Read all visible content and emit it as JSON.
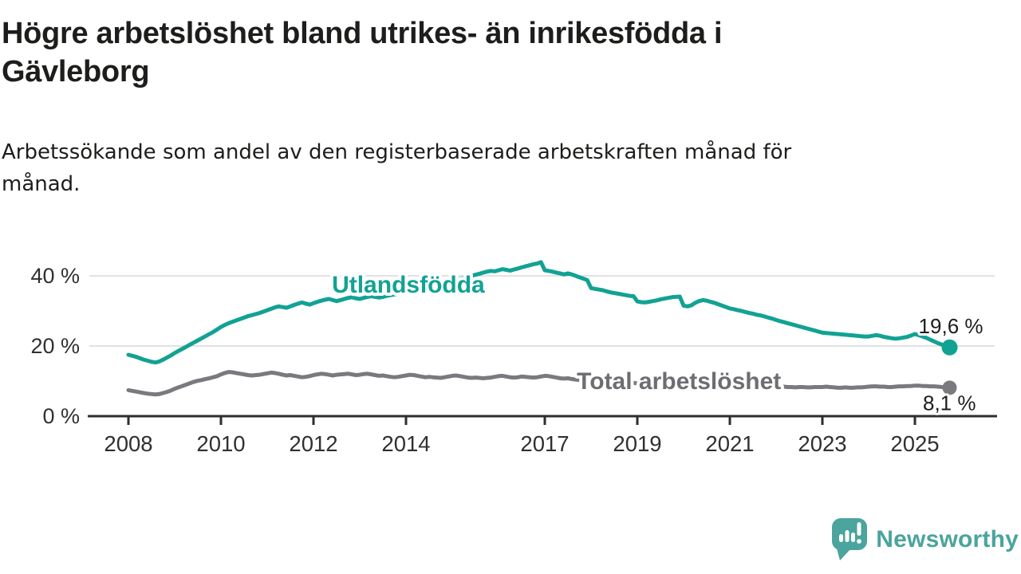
{
  "branding": {
    "logo_text": "Newsworthy",
    "brand_color": "#4ba49d"
  },
  "chart_data": {
    "type": "line",
    "title_lines": [
      "Högre arbetslöshet bland utrikes- än inrikesfödda i",
      "Gävleborg"
    ],
    "subtitle_lines": [
      "Arbetssökande som andel av den registerbaserade arbetskraften månad för",
      "månad."
    ],
    "x": {
      "start": "2008-01",
      "end": "2025-10",
      "interval": "month",
      "tick_years": [
        2008,
        2010,
        2012,
        2014,
        2017,
        2019,
        2021,
        2023,
        2025
      ]
    },
    "y": {
      "ticks": [
        {
          "value": 0,
          "label": "0 %"
        },
        {
          "value": 20,
          "label": "20 %"
        },
        {
          "value": 40,
          "label": "40 %"
        }
      ],
      "ylim": [
        0,
        46
      ]
    },
    "grid": "horizontal",
    "colors": {
      "gridline": "#d9d9d9",
      "axis": "#2e2e2e",
      "tick_text": "#303030",
      "value_text": "#1d1d1b"
    },
    "series": [
      {
        "name": "Utlandsfödda",
        "color": "#12a294",
        "label_anchor": {
          "year": 2014.05,
          "value": 37.5
        },
        "end_value_label": "19,6 %",
        "end_label_offset": {
          "dx": 42,
          "dy": -18
        },
        "values": [
          17.5,
          17.2,
          16.9,
          16.5,
          16.1,
          15.8,
          15.5,
          15.3,
          15.6,
          16.1,
          16.7,
          17.3,
          18.0,
          18.6,
          19.2,
          19.8,
          20.4,
          21.0,
          21.6,
          22.2,
          22.8,
          23.4,
          24.0,
          24.7,
          25.4,
          26.0,
          26.5,
          26.9,
          27.3,
          27.7,
          28.1,
          28.5,
          28.8,
          29.1,
          29.4,
          29.8,
          30.2,
          30.6,
          31.0,
          31.3,
          31.1,
          30.9,
          31.3,
          31.7,
          32.1,
          32.4,
          32.1,
          31.8,
          32.2,
          32.6,
          32.9,
          33.2,
          33.4,
          33.1,
          32.8,
          33.1,
          33.4,
          33.7,
          33.9,
          33.6,
          33.4,
          33.7,
          34.0,
          34.2,
          34.0,
          33.8,
          34.0,
          34.3,
          34.5,
          34.7,
          34.9,
          35.1,
          35.4,
          35.7,
          35.9,
          36.1,
          36.3,
          36.5,
          36.8,
          37.0,
          37.3,
          37.6,
          37.9,
          38.2,
          38.5,
          38.8,
          39.1,
          39.4,
          39.7,
          40.0,
          40.3,
          40.6,
          40.9,
          41.2,
          41.4,
          41.3,
          41.6,
          41.9,
          41.7,
          41.5,
          41.8,
          42.1,
          42.4,
          42.7,
          43.0,
          43.3,
          43.5,
          43.9,
          41.6,
          41.4,
          41.2,
          40.9,
          40.7,
          40.4,
          40.7,
          40.4,
          40.0,
          39.6,
          39.2,
          38.8,
          36.5,
          36.3,
          36.1,
          35.9,
          35.6,
          35.3,
          35.1,
          34.9,
          34.7,
          34.5,
          34.3,
          34.2,
          32.7,
          32.5,
          32.4,
          32.6,
          32.8,
          33.0,
          33.3,
          33.5,
          33.7,
          33.9,
          34.0,
          34.1,
          31.5,
          31.3,
          31.6,
          32.3,
          32.8,
          33.1,
          32.9,
          32.6,
          32.3,
          31.9,
          31.5,
          31.1,
          30.7,
          30.5,
          30.2,
          30.0,
          29.7,
          29.4,
          29.2,
          28.9,
          28.7,
          28.4,
          28.1,
          27.8,
          27.4,
          27.1,
          26.8,
          26.5,
          26.2,
          25.9,
          25.6,
          25.3,
          25.0,
          24.7,
          24.4,
          24.1,
          23.8,
          23.7,
          23.6,
          23.5,
          23.4,
          23.3,
          23.2,
          23.1,
          23.0,
          22.9,
          22.8,
          22.7,
          22.7,
          22.9,
          23.1,
          22.9,
          22.6,
          22.4,
          22.2,
          22.1,
          22.2,
          22.4,
          22.6,
          23.0,
          23.4,
          23.1,
          22.7,
          22.3,
          21.8,
          21.3,
          20.8,
          20.4,
          20.0,
          19.6
        ]
      },
      {
        "name": "Total arbetslöshet",
        "color": "#7a797e",
        "label_color": "#6e6d72",
        "label_anchor": {
          "year": 2019.9,
          "value": 10.0
        },
        "end_value_label": "8,1 %",
        "end_label_offset": {
          "dx": 33,
          "dy": 28
        },
        "values": [
          7.4,
          7.2,
          7.0,
          6.8,
          6.6,
          6.4,
          6.3,
          6.2,
          6.3,
          6.6,
          6.9,
          7.3,
          7.8,
          8.2,
          8.6,
          9.0,
          9.4,
          9.8,
          10.1,
          10.3,
          10.6,
          10.8,
          11.1,
          11.4,
          11.9,
          12.3,
          12.6,
          12.5,
          12.3,
          12.1,
          11.9,
          11.7,
          11.6,
          11.7,
          11.8,
          12.0,
          12.2,
          12.4,
          12.3,
          12.1,
          11.8,
          11.6,
          11.7,
          11.5,
          11.3,
          11.1,
          11.2,
          11.4,
          11.7,
          11.9,
          12.1,
          12.0,
          11.8,
          11.6,
          11.8,
          11.9,
          12.0,
          12.1,
          11.9,
          11.7,
          11.8,
          12.0,
          12.1,
          11.9,
          11.7,
          11.5,
          11.6,
          11.4,
          11.2,
          11.1,
          11.2,
          11.4,
          11.6,
          11.8,
          11.7,
          11.5,
          11.3,
          11.1,
          11.2,
          11.1,
          11.0,
          10.9,
          11.1,
          11.3,
          11.5,
          11.6,
          11.4,
          11.2,
          11.0,
          10.9,
          11.0,
          10.9,
          10.8,
          10.9,
          11.0,
          11.2,
          11.4,
          11.5,
          11.3,
          11.1,
          11.0,
          11.1,
          11.3,
          11.2,
          11.1,
          11.0,
          11.1,
          11.3,
          11.5,
          11.4,
          11.2,
          11.0,
          10.8,
          10.7,
          10.8,
          10.6,
          10.4,
          10.3,
          10.2,
          10.3,
          10.1,
          10.0,
          9.9,
          9.7,
          9.6,
          9.5,
          9.6,
          9.5,
          9.4,
          9.3,
          9.4,
          9.5,
          9.3,
          9.2,
          9.1,
          9.2,
          9.3,
          9.4,
          9.5,
          9.6,
          9.6,
          9.7,
          9.7,
          9.8,
          9.5,
          9.5,
          9.7,
          10.3,
          10.7,
          10.9,
          11.0,
          10.9,
          10.7,
          10.5,
          10.3,
          10.1,
          10.0,
          9.9,
          9.7,
          9.5,
          9.3,
          9.1,
          9.0,
          8.9,
          8.8,
          8.7,
          8.6,
          8.5,
          8.5,
          8.4,
          8.4,
          8.3,
          8.3,
          8.2,
          8.3,
          8.3,
          8.2,
          8.2,
          8.3,
          8.3,
          8.3,
          8.4,
          8.3,
          8.2,
          8.1,
          8.1,
          8.2,
          8.1,
          8.1,
          8.2,
          8.2,
          8.3,
          8.4,
          8.5,
          8.5,
          8.4,
          8.4,
          8.3,
          8.3,
          8.4,
          8.5,
          8.5,
          8.6,
          8.6,
          8.7,
          8.7,
          8.6,
          8.6,
          8.5,
          8.5,
          8.4,
          8.3,
          8.2,
          8.1
        ]
      }
    ]
  }
}
